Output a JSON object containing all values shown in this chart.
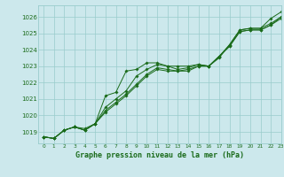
{
  "title": "Graphe pression niveau de la mer (hPa)",
  "xlim": [
    -0.5,
    23
  ],
  "ylim": [
    1018.3,
    1026.7
  ],
  "yticks": [
    1019,
    1020,
    1021,
    1022,
    1023,
    1024,
    1025,
    1026
  ],
  "xticks": [
    0,
    1,
    2,
    3,
    4,
    5,
    6,
    7,
    8,
    9,
    10,
    11,
    12,
    13,
    14,
    15,
    16,
    17,
    18,
    19,
    20,
    21,
    22,
    23
  ],
  "bg_color": "#cce8ec",
  "grid_color": "#99cccc",
  "line_color": "#1a6b1a",
  "title_color": "#1a6b1a",
  "lines": [
    [
      1018.7,
      1018.6,
      1019.1,
      1019.3,
      1019.1,
      1019.5,
      1021.2,
      1021.4,
      1022.7,
      1022.8,
      1023.2,
      1023.2,
      1023.0,
      1023.0,
      1023.0,
      1023.1,
      1023.0,
      1023.5,
      1024.3,
      1025.2,
      1025.3,
      1025.3,
      1025.9,
      1026.3
    ],
    [
      1018.7,
      1018.6,
      1019.1,
      1019.3,
      1019.1,
      1019.5,
      1020.5,
      1021.0,
      1021.5,
      1022.4,
      1022.8,
      1023.1,
      1023.0,
      1022.8,
      1022.9,
      1023.1,
      1023.0,
      1023.6,
      1024.3,
      1025.2,
      1025.3,
      1025.3,
      1025.6,
      1026.0
    ],
    [
      1018.7,
      1018.6,
      1019.1,
      1019.3,
      1019.1,
      1019.5,
      1020.3,
      1020.8,
      1021.3,
      1021.9,
      1022.5,
      1022.9,
      1022.8,
      1022.7,
      1022.8,
      1023.0,
      1023.0,
      1023.6,
      1024.2,
      1025.1,
      1025.2,
      1025.2,
      1025.5,
      1026.0
    ],
    [
      1018.7,
      1018.6,
      1019.1,
      1019.3,
      1019.2,
      1019.5,
      1020.2,
      1020.7,
      1021.2,
      1021.8,
      1022.4,
      1022.8,
      1022.7,
      1022.7,
      1022.7,
      1023.0,
      1023.0,
      1023.6,
      1024.2,
      1025.1,
      1025.2,
      1025.2,
      1025.5,
      1025.9
    ]
  ]
}
